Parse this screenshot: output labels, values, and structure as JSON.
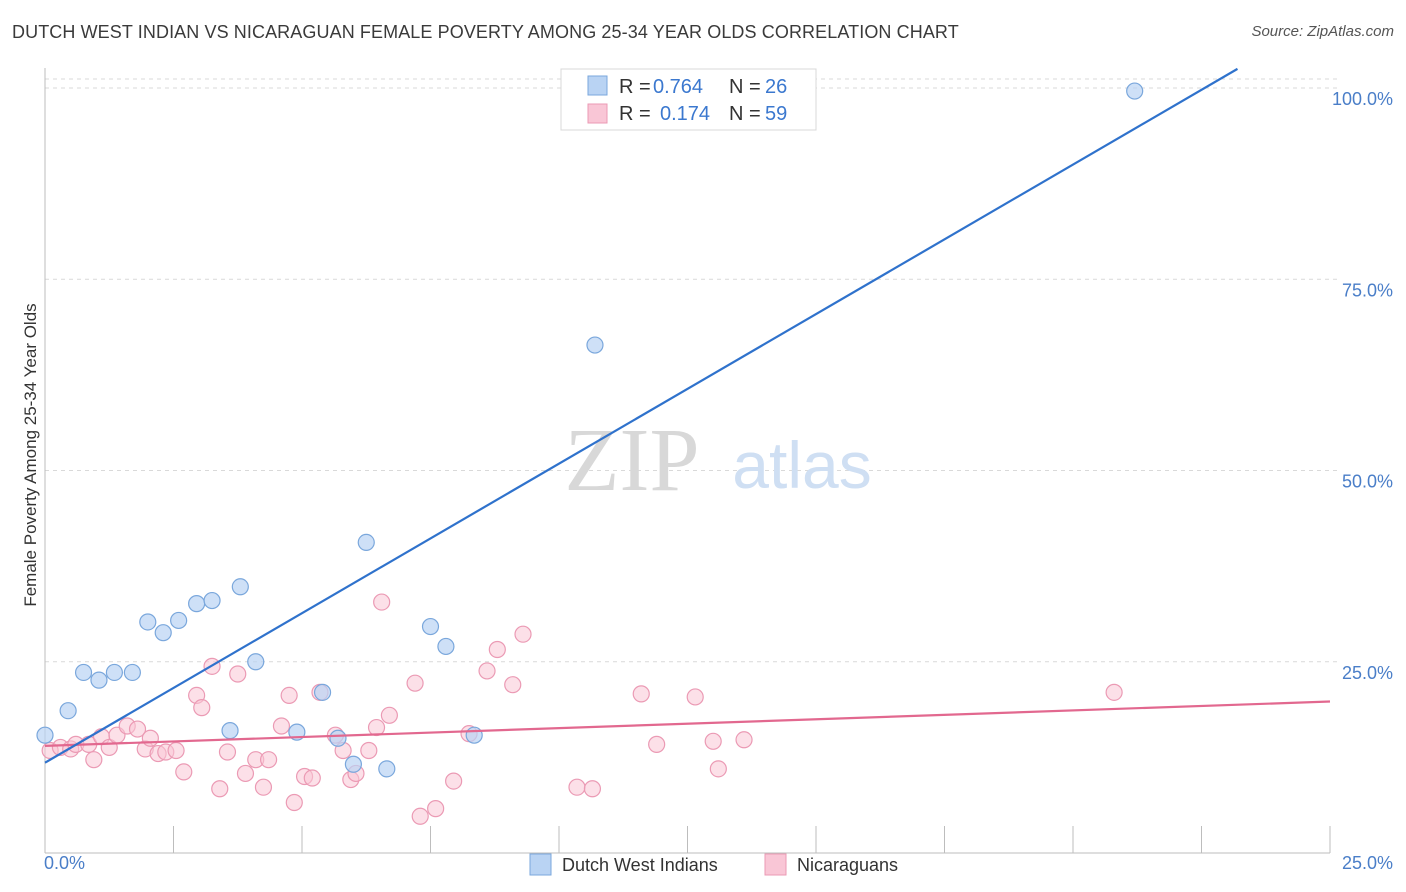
{
  "title": "DUTCH WEST INDIAN VS NICARAGUAN FEMALE POVERTY AMONG 25-34 YEAR OLDS CORRELATION CHART",
  "source": "Source: ZipAtlas.com",
  "watermark": {
    "zip": "ZIP",
    "atlas": "atlas"
  },
  "colors": {
    "blue_fill": "#b9d3f3",
    "blue_stroke": "#7aa7dc",
    "blue_line": "#2f72cc",
    "pink_fill": "#f9c6d6",
    "pink_stroke": "#eb9ab4",
    "pink_line": "#e2688f",
    "tick_text": "#4a7ec8",
    "grid": "#d9d9d9"
  },
  "legend": {
    "rows": [
      {
        "r_label": "R =",
        "r_value": "0.764",
        "n_label": "N =",
        "n_value": "26"
      },
      {
        "r_label": "R =",
        "r_value": "0.174",
        "n_label": "N =",
        "n_value": "59"
      }
    ]
  },
  "bottom_legend": [
    "Dutch West Indians",
    "Nicaraguans"
  ],
  "chart_data": {
    "type": "scatter",
    "title": "DUTCH WEST INDIAN VS NICARAGUAN FEMALE POVERTY AMONG 25-34 YEAR OLDS CORRELATION CHART",
    "xlabel": "",
    "ylabel": "Female Poverty Among 25-34 Year Olds",
    "xlim": [
      0,
      25
    ],
    "ylim": [
      0,
      100
    ],
    "x_tick_labels": [
      "0.0%",
      "25.0%"
    ],
    "y_tick_labels": [
      "25.0%",
      "50.0%",
      "75.0%",
      "100.0%"
    ],
    "y_ticks": [
      25,
      50,
      75,
      100
    ],
    "grid": true,
    "legend_position": "top-center",
    "series": [
      {
        "name": "Dutch West Indians",
        "r": 0.764,
        "n": 26,
        "trend": {
          "x": [
            0,
            23.2
          ],
          "y": [
            11.8,
            102.5
          ]
        },
        "points": [
          [
            0.0,
            15.4
          ],
          [
            0.45,
            18.6
          ],
          [
            0.75,
            23.6
          ],
          [
            1.05,
            22.6
          ],
          [
            1.35,
            23.6
          ],
          [
            1.7,
            23.6
          ],
          [
            2.0,
            30.2
          ],
          [
            2.3,
            28.8
          ],
          [
            2.6,
            30.4
          ],
          [
            2.95,
            32.6
          ],
          [
            3.25,
            33.0
          ],
          [
            3.6,
            16.0
          ],
          [
            3.8,
            34.8
          ],
          [
            4.1,
            25.0
          ],
          [
            4.9,
            15.8
          ],
          [
            5.4,
            21.0
          ],
          [
            5.7,
            15.0
          ],
          [
            6.0,
            11.6
          ],
          [
            6.25,
            40.6
          ],
          [
            6.65,
            11.0
          ],
          [
            7.5,
            29.6
          ],
          [
            7.8,
            27.0
          ],
          [
            8.35,
            15.4
          ],
          [
            10.7,
            66.4
          ],
          [
            13.3,
            100.0
          ],
          [
            21.2,
            99.6
          ]
        ]
      },
      {
        "name": "Nicaraguans",
        "r": 0.174,
        "n": 59,
        "trend": {
          "x": [
            0,
            25
          ],
          "y": [
            14.0,
            19.8
          ]
        },
        "points": [
          [
            0.1,
            13.4
          ],
          [
            0.3,
            13.8
          ],
          [
            0.5,
            13.6
          ],
          [
            0.6,
            14.2
          ],
          [
            0.85,
            14.2
          ],
          [
            0.95,
            12.2
          ],
          [
            1.1,
            15.2
          ],
          [
            1.25,
            13.8
          ],
          [
            1.4,
            15.4
          ],
          [
            1.6,
            16.6
          ],
          [
            1.8,
            16.2
          ],
          [
            1.95,
            13.6
          ],
          [
            2.05,
            15.0
          ],
          [
            2.2,
            13.0
          ],
          [
            2.35,
            13.2
          ],
          [
            2.55,
            13.4
          ],
          [
            2.7,
            10.6
          ],
          [
            2.95,
            20.6
          ],
          [
            3.05,
            19.0
          ],
          [
            3.25,
            24.4
          ],
          [
            3.4,
            8.4
          ],
          [
            3.55,
            13.2
          ],
          [
            3.75,
            23.4
          ],
          [
            3.9,
            10.4
          ],
          [
            4.1,
            12.2
          ],
          [
            4.25,
            8.6
          ],
          [
            4.35,
            12.2
          ],
          [
            4.6,
            16.6
          ],
          [
            4.75,
            20.6
          ],
          [
            4.85,
            6.6
          ],
          [
            5.05,
            10.0
          ],
          [
            5.2,
            9.8
          ],
          [
            5.35,
            21.0
          ],
          [
            5.65,
            15.4
          ],
          [
            5.8,
            13.4
          ],
          [
            5.95,
            9.6
          ],
          [
            6.05,
            10.4
          ],
          [
            6.3,
            13.4
          ],
          [
            6.45,
            16.4
          ],
          [
            6.55,
            32.8
          ],
          [
            6.7,
            18.0
          ],
          [
            7.2,
            22.2
          ],
          [
            7.3,
            4.8
          ],
          [
            7.6,
            5.8
          ],
          [
            7.95,
            9.4
          ],
          [
            8.25,
            15.6
          ],
          [
            8.6,
            23.8
          ],
          [
            8.8,
            26.6
          ],
          [
            9.1,
            22.0
          ],
          [
            9.3,
            28.6
          ],
          [
            10.35,
            8.6
          ],
          [
            10.65,
            8.4
          ],
          [
            11.6,
            20.8
          ],
          [
            11.9,
            14.2
          ],
          [
            12.65,
            20.4
          ],
          [
            13.0,
            14.6
          ],
          [
            13.1,
            11.0
          ],
          [
            13.6,
            14.8
          ],
          [
            20.8,
            21.0
          ]
        ]
      }
    ]
  }
}
